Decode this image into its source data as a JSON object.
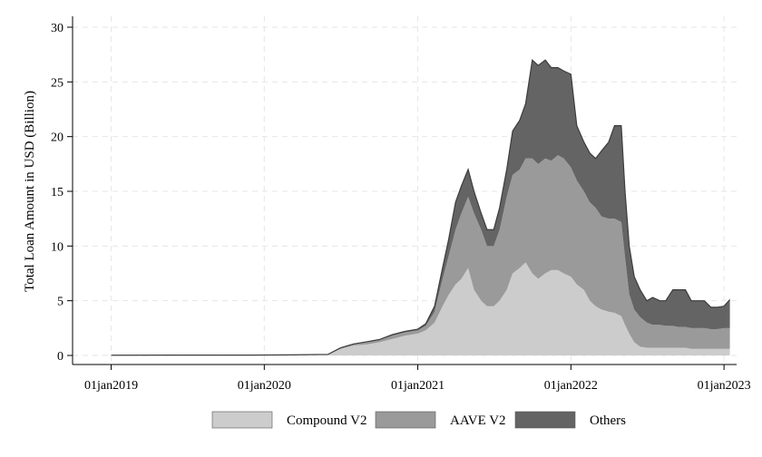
{
  "chart_data": {
    "type": "area",
    "stacked": true,
    "title": "",
    "xlabel": "",
    "ylabel": "Total Loan Amount in USD (Billion)",
    "ylim": [
      0,
      30
    ],
    "yticks": [
      0,
      5,
      10,
      15,
      20,
      25,
      30
    ],
    "xlim": [
      "2018-10-01",
      "2023-01-31"
    ],
    "xticks": [
      "2019-01-01",
      "2020-01-01",
      "2021-01-01",
      "2022-01-01",
      "2023-01-01"
    ],
    "xtick_labels": [
      "01jan2019",
      "01jan2020",
      "01jan2021",
      "01jan2022",
      "01jan2023"
    ],
    "grid": true,
    "legend_position": "bottom",
    "colors": {
      "Compound V2": "#cccccc",
      "AAVE V2": "#9a9a9a",
      "Others": "#646464",
      "outline": "#3c3c3c",
      "grid": "#e6e6e6"
    },
    "x": [
      "2019-01-01",
      "2019-06-01",
      "2019-12-01",
      "2020-03-01",
      "2020-06-01",
      "2020-07-01",
      "2020-08-01",
      "2020-09-01",
      "2020-10-01",
      "2020-11-01",
      "2020-12-01",
      "2021-01-01",
      "2021-01-20",
      "2021-02-10",
      "2021-03-01",
      "2021-03-15",
      "2021-04-01",
      "2021-04-15",
      "2021-05-01",
      "2021-05-15",
      "2021-06-01",
      "2021-06-15",
      "2021-07-01",
      "2021-07-15",
      "2021-08-01",
      "2021-08-15",
      "2021-09-01",
      "2021-09-15",
      "2021-10-01",
      "2021-10-15",
      "2021-11-01",
      "2021-11-15",
      "2021-12-01",
      "2021-12-15",
      "2022-01-01",
      "2022-01-15",
      "2022-02-01",
      "2022-02-15",
      "2022-03-01",
      "2022-03-15",
      "2022-04-01",
      "2022-04-15",
      "2022-05-01",
      "2022-05-10",
      "2022-05-20",
      "2022-06-01",
      "2022-06-15",
      "2022-07-01",
      "2022-07-15",
      "2022-08-01",
      "2022-08-15",
      "2022-09-01",
      "2022-09-15",
      "2022-10-01",
      "2022-10-15",
      "2022-11-01",
      "2022-11-15",
      "2022-12-01",
      "2022-12-15",
      "2023-01-01",
      "2023-01-15"
    ],
    "series": [
      {
        "name": "Compound V2",
        "values": [
          0.02,
          0.03,
          0.03,
          0.05,
          0.1,
          0.6,
          0.9,
          1.0,
          1.2,
          1.5,
          1.8,
          2.0,
          2.3,
          3.0,
          4.5,
          5.5,
          6.5,
          7.0,
          8.0,
          6.0,
          5.0,
          4.5,
          4.5,
          5.0,
          6.0,
          7.5,
          8.0,
          8.5,
          7.5,
          7.0,
          7.5,
          7.8,
          7.8,
          7.5,
          7.2,
          6.5,
          6.0,
          5.0,
          4.5,
          4.2,
          4.0,
          3.9,
          3.6,
          2.8,
          2.0,
          1.2,
          0.8,
          0.7,
          0.7,
          0.7,
          0.7,
          0.7,
          0.7,
          0.7,
          0.6,
          0.6,
          0.6,
          0.6,
          0.6,
          0.6,
          0.6
        ]
      },
      {
        "name": "AAVE V2",
        "values": [
          0,
          0,
          0,
          0,
          0,
          0.1,
          0.1,
          0.2,
          0.2,
          0.3,
          0.3,
          0.3,
          0.4,
          1.0,
          2.5,
          3.5,
          5.0,
          6.0,
          6.5,
          7.0,
          6.5,
          5.5,
          5.5,
          6.5,
          8.5,
          9.0,
          9.0,
          9.5,
          10.5,
          10.5,
          10.5,
          10.0,
          10.5,
          10.5,
          10.0,
          9.5,
          9.0,
          9.0,
          9.0,
          8.5,
          8.5,
          8.6,
          8.6,
          6.2,
          3.6,
          3.0,
          2.7,
          2.3,
          2.1,
          2.1,
          2.0,
          2.0,
          1.9,
          1.9,
          1.9,
          1.9,
          1.9,
          1.8,
          1.8,
          1.9,
          1.9
        ]
      },
      {
        "name": "Others",
        "values": [
          0,
          0,
          0,
          0,
          0,
          0,
          0.05,
          0.05,
          0.05,
          0.1,
          0.1,
          0.1,
          0.2,
          0.5,
          1.0,
          1.5,
          2.5,
          2.5,
          2.5,
          2.0,
          1.5,
          1.5,
          1.5,
          2.0,
          2.5,
          4.0,
          4.5,
          5.0,
          9.0,
          9.0,
          9.0,
          8.5,
          8.0,
          8.0,
          8.5,
          5.0,
          4.5,
          4.5,
          4.5,
          6.0,
          7.0,
          8.5,
          8.8,
          6.0,
          4.4,
          3.0,
          2.5,
          2.0,
          2.5,
          2.2,
          2.3,
          3.3,
          3.4,
          3.4,
          2.5,
          2.5,
          2.5,
          2.0,
          2.0,
          2.0,
          2.6
        ]
      }
    ]
  }
}
